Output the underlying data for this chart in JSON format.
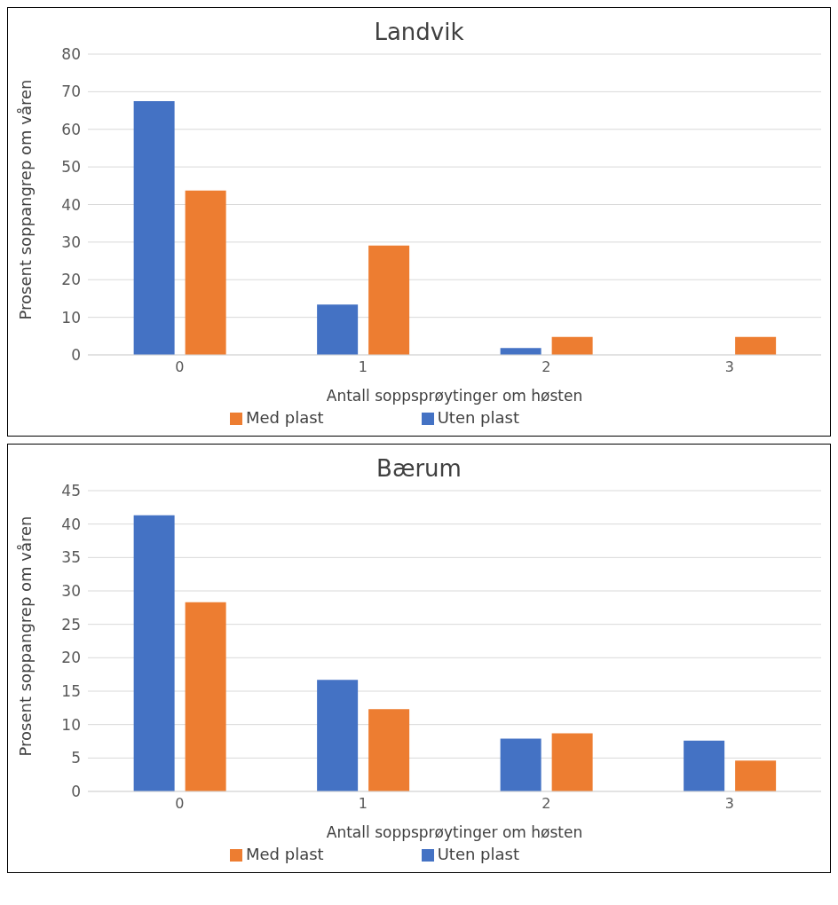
{
  "chart_data": [
    {
      "type": "bar",
      "title": "Landvik",
      "xlabel": "Antall soppsprøytinger om høsten",
      "ylabel": "Prosent soppangrep om våren",
      "categories": [
        "0",
        "1",
        "2",
        "3"
      ],
      "series": [
        {
          "name": "Uten plast",
          "color": "#4472c4",
          "values": [
            67.5,
            13.4,
            1.8,
            0
          ]
        },
        {
          "name": "Med plast",
          "color": "#ed7d31",
          "values": [
            43.7,
            29.1,
            4.8,
            4.8
          ]
        }
      ],
      "ylim": [
        0,
        80
      ],
      "yticks": [
        0,
        10,
        20,
        30,
        40,
        50,
        60,
        70,
        80
      ],
      "grid": "y",
      "legend": "bottom"
    },
    {
      "type": "bar",
      "title": "Bærum",
      "xlabel": "Antall soppsprøytinger om høsten",
      "ylabel": "Prosent soppangrep om våren",
      "categories": [
        "0",
        "1",
        "2",
        "3"
      ],
      "series": [
        {
          "name": "Uten plast",
          "color": "#4472c4",
          "values": [
            41.3,
            16.7,
            7.9,
            7.6
          ]
        },
        {
          "name": "Med plast",
          "color": "#ed7d31",
          "values": [
            28.3,
            12.3,
            8.7,
            4.6
          ]
        }
      ],
      "ylim": [
        0,
        45
      ],
      "yticks": [
        0,
        5,
        10,
        15,
        20,
        25,
        30,
        35,
        40,
        45
      ],
      "grid": "y",
      "legend": "bottom"
    }
  ]
}
